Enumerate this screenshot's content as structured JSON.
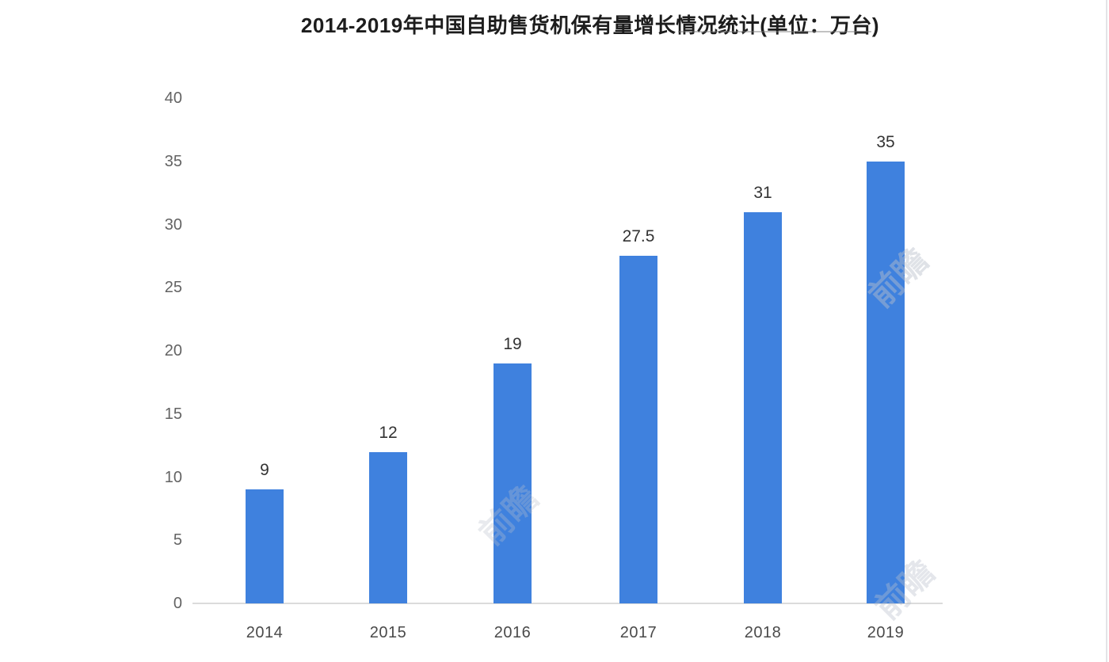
{
  "chart_data": {
    "type": "bar",
    "title": "2014-2019年中国自助售货机保有量增长情况统计(单位：万台)",
    "categories": [
      "2014",
      "2015",
      "2016",
      "2017",
      "2018",
      "2019"
    ],
    "values": [
      9,
      12,
      19,
      27.5,
      31,
      35
    ],
    "value_labels": [
      "9",
      "12",
      "19",
      "27.5",
      "31",
      "35"
    ],
    "xlabel": "",
    "ylabel": "",
    "ylim": [
      0,
      40
    ],
    "y_ticks": [
      0,
      5,
      10,
      15,
      20,
      25,
      30,
      35,
      40
    ],
    "grid": false,
    "legend": false,
    "bar_color": "#3f81de",
    "axis_line_color": "#dbdbdb"
  },
  "watermark": {
    "text": "前瞻"
  }
}
